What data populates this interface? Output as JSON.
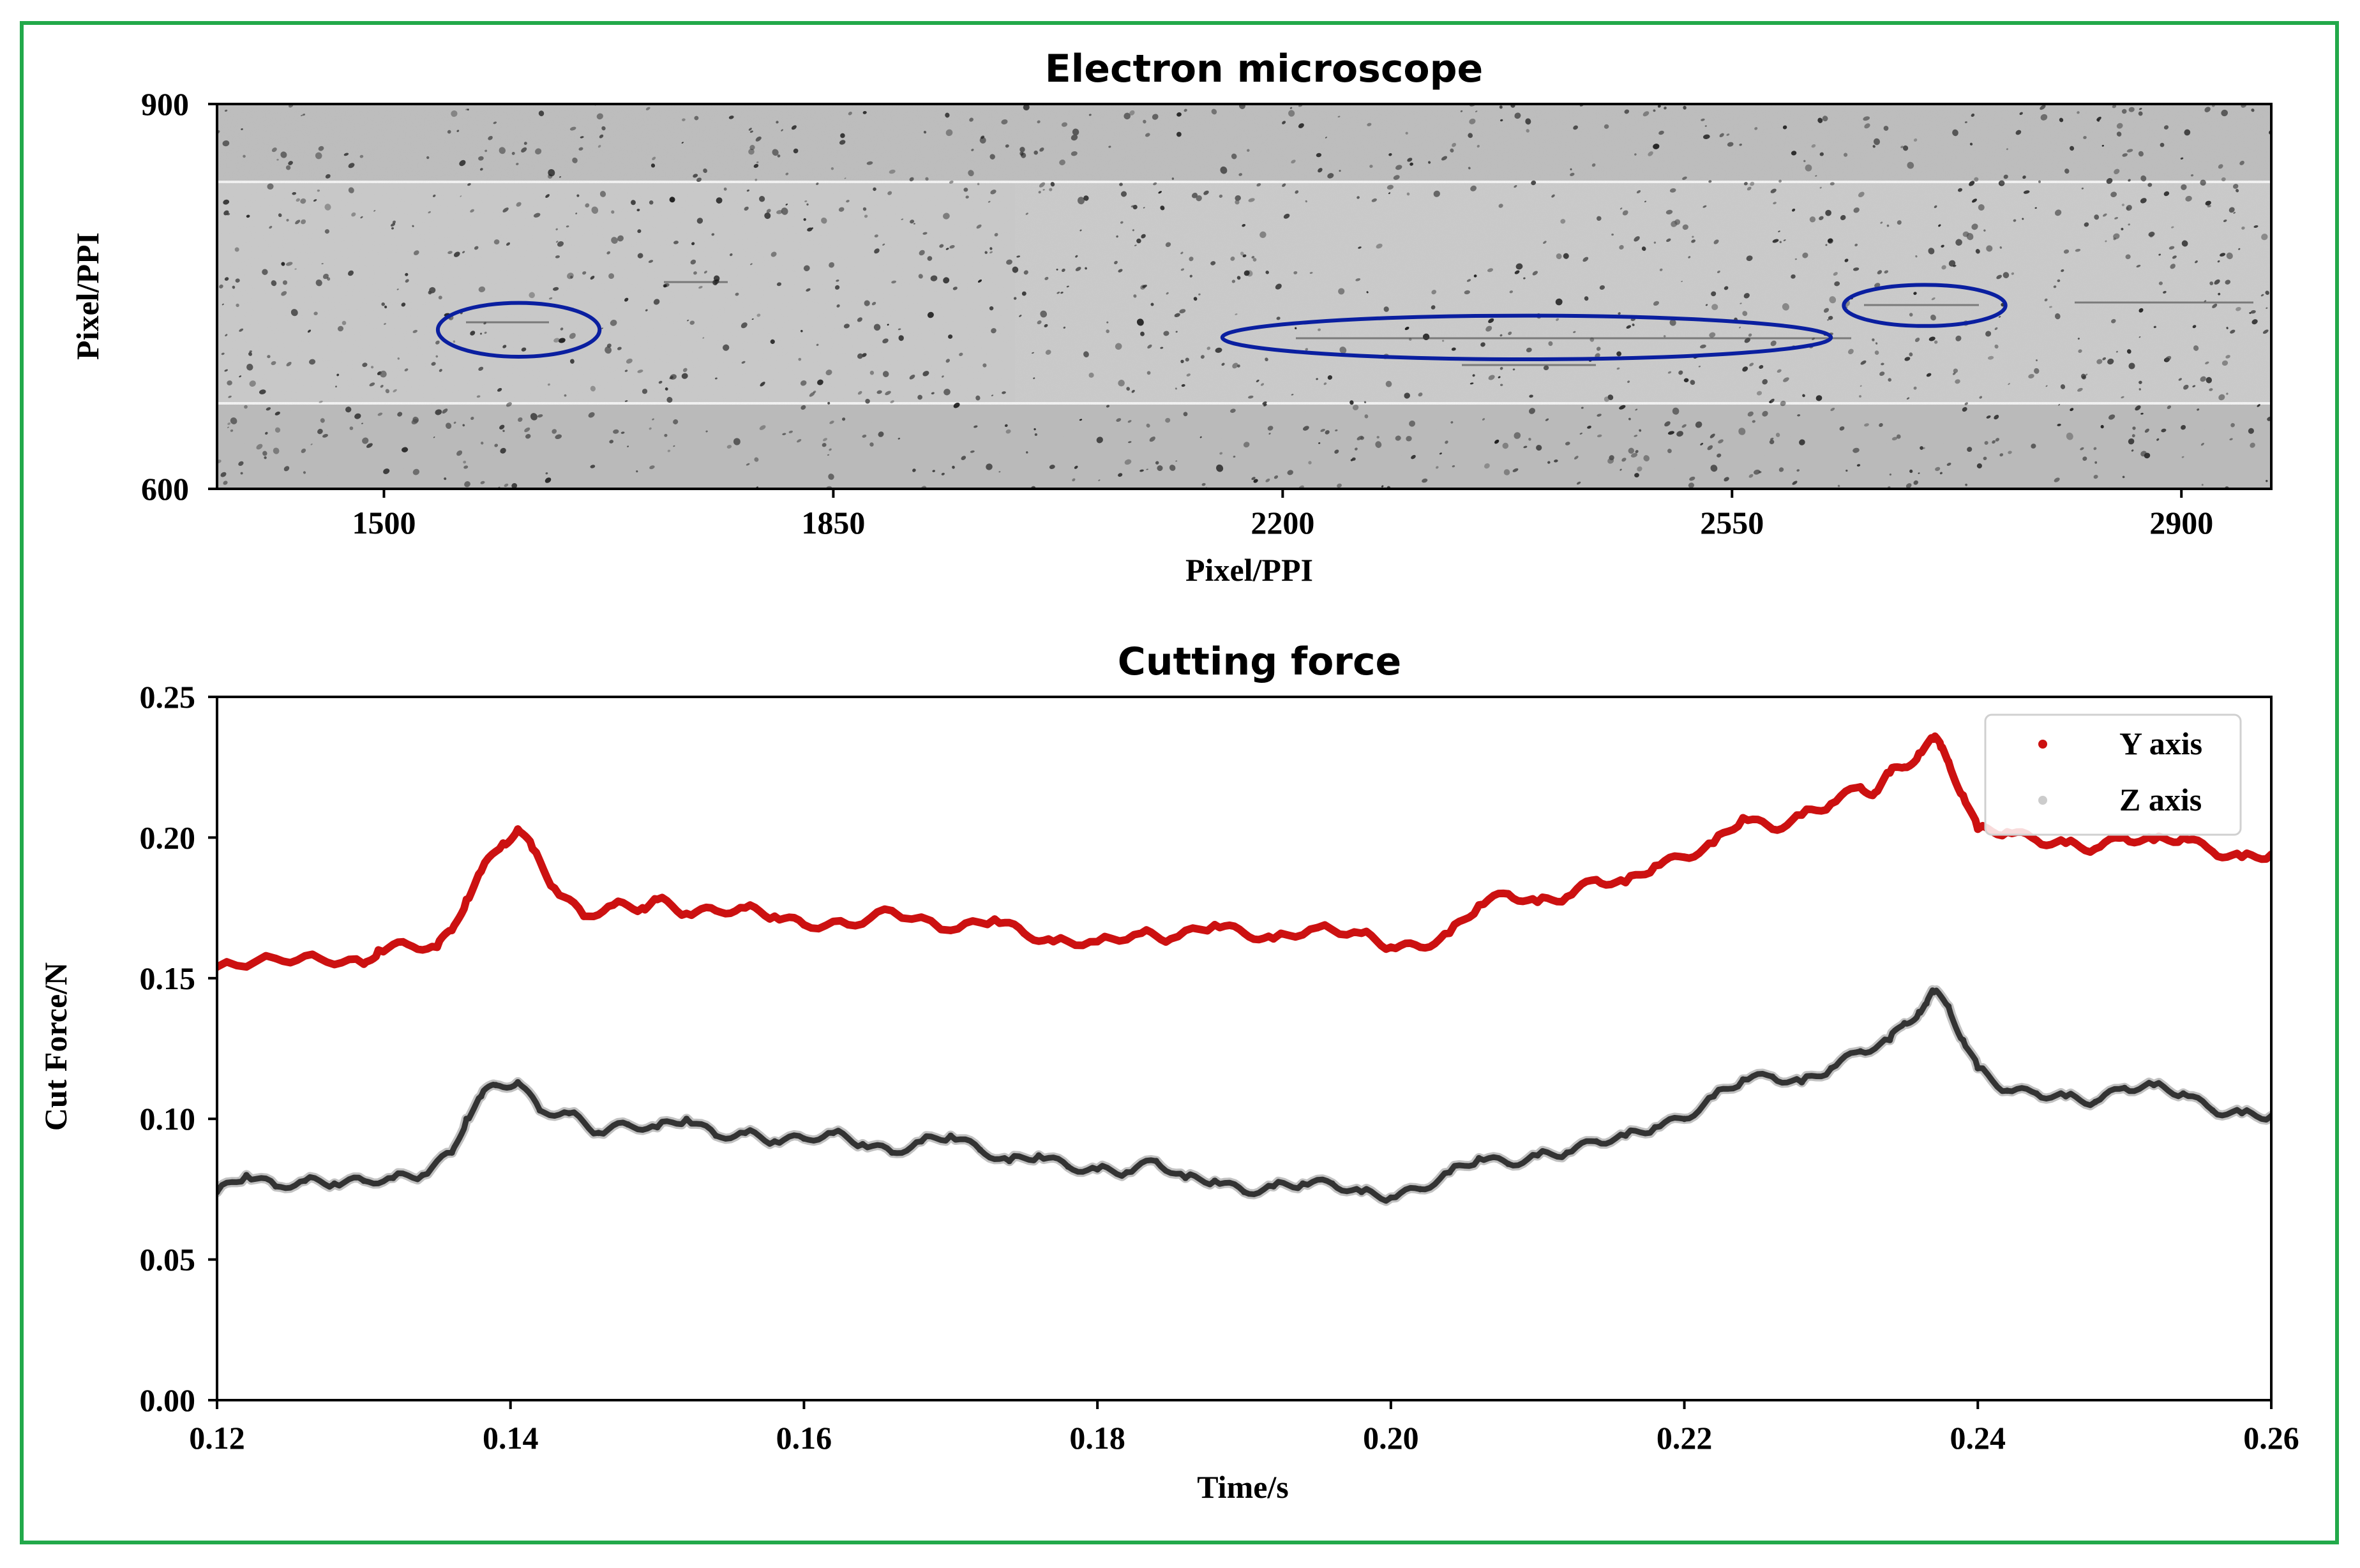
{
  "colors": {
    "frame": "#22a94a",
    "y_axis_series": "#cc1111",
    "z_axis_series": "#333333",
    "ellipse": "#0a1fa0",
    "micro_bg": "#c8c8c8"
  },
  "chart_data": [
    {
      "type": "image",
      "title": "Electron microscope",
      "xlabel": "Pixel/PPI",
      "ylabel": "Pixel/PPI",
      "xlim": [
        1370,
        2970
      ],
      "ylim": [
        600,
        900
      ],
      "xticks": [
        1500,
        1850,
        2200,
        2550,
        2900
      ],
      "yticks": [
        600,
        900
      ],
      "annotations": [
        {
          "shape": "ellipse",
          "cx": 1605,
          "cy": 724,
          "rx": 63,
          "ry": 21
        },
        {
          "shape": "ellipse",
          "cx": 2390,
          "cy": 718,
          "rx": 237,
          "ry": 17
        },
        {
          "shape": "ellipse",
          "cx": 2700,
          "cy": 743,
          "rx": 63,
          "ry": 16
        }
      ]
    },
    {
      "type": "line",
      "title": "Cutting force",
      "xlabel": "Time/s",
      "ylabel": "Cut Force/N",
      "xlim": [
        0.12,
        0.26
      ],
      "ylim": [
        0.0,
        0.25
      ],
      "xticks": [
        0.12,
        0.14,
        0.16,
        0.18,
        0.2,
        0.22,
        0.24,
        0.26
      ],
      "xtick_labels": [
        "0.12",
        "0.14",
        "0.16",
        "0.18",
        "0.20",
        "0.22",
        "0.24",
        "0.26"
      ],
      "yticks": [
        0.0,
        0.05,
        0.1,
        0.15,
        0.2,
        0.25
      ],
      "ytick_labels": [
        "0.00",
        "0.05",
        "0.10",
        "0.15",
        "0.20",
        "0.25"
      ],
      "legend_position": "top-right",
      "series": [
        {
          "name": "Y axis",
          "x": [
            0.12,
            0.124,
            0.127,
            0.13,
            0.131,
            0.133,
            0.135,
            0.136,
            0.137,
            0.138,
            0.1395,
            0.1405,
            0.1415,
            0.143,
            0.145,
            0.147,
            0.149,
            0.15,
            0.152,
            0.154,
            0.156,
            0.158,
            0.16,
            0.163,
            0.166,
            0.17,
            0.173,
            0.175,
            0.177,
            0.18,
            0.183,
            0.185,
            0.188,
            0.19,
            0.192,
            0.195,
            0.198,
            0.2,
            0.202,
            0.204,
            0.206,
            0.208,
            0.21,
            0.212,
            0.214,
            0.216,
            0.218,
            0.22,
            0.222,
            0.224,
            0.226,
            0.228,
            0.23,
            0.232,
            0.233,
            0.234,
            0.235,
            0.236,
            0.237,
            0.2375,
            0.238,
            0.239,
            0.24,
            0.242,
            0.244,
            0.246,
            0.248,
            0.25,
            0.252,
            0.254,
            0.256,
            0.258,
            0.26
          ],
          "values": [
            0.154,
            0.157,
            0.157,
            0.155,
            0.16,
            0.162,
            0.161,
            0.167,
            0.178,
            0.188,
            0.198,
            0.203,
            0.196,
            0.182,
            0.172,
            0.176,
            0.175,
            0.178,
            0.173,
            0.174,
            0.175,
            0.172,
            0.169,
            0.169,
            0.174,
            0.167,
            0.171,
            0.166,
            0.163,
            0.163,
            0.166,
            0.164,
            0.169,
            0.166,
            0.164,
            0.168,
            0.166,
            0.161,
            0.161,
            0.166,
            0.176,
            0.18,
            0.177,
            0.179,
            0.185,
            0.184,
            0.19,
            0.193,
            0.198,
            0.207,
            0.203,
            0.208,
            0.212,
            0.218,
            0.216,
            0.223,
            0.225,
            0.23,
            0.235,
            0.232,
            0.227,
            0.215,
            0.203,
            0.202,
            0.199,
            0.198,
            0.196,
            0.2,
            0.199,
            0.2,
            0.195,
            0.193,
            0.194
          ]
        },
        {
          "name": "Z axis",
          "x": [
            0.12,
            0.122,
            0.124,
            0.126,
            0.128,
            0.13,
            0.132,
            0.134,
            0.136,
            0.137,
            0.138,
            0.139,
            0.1405,
            0.142,
            0.144,
            0.146,
            0.148,
            0.15,
            0.152,
            0.154,
            0.156,
            0.158,
            0.16,
            0.162,
            0.164,
            0.166,
            0.168,
            0.17,
            0.172,
            0.174,
            0.176,
            0.178,
            0.18,
            0.182,
            0.184,
            0.186,
            0.188,
            0.19,
            0.192,
            0.194,
            0.196,
            0.198,
            0.2,
            0.202,
            0.204,
            0.206,
            0.208,
            0.21,
            0.212,
            0.214,
            0.216,
            0.218,
            0.22,
            0.222,
            0.224,
            0.226,
            0.228,
            0.23,
            0.232,
            0.234,
            0.235,
            0.236,
            0.2365,
            0.237,
            0.238,
            0.239,
            0.24,
            0.242,
            0.244,
            0.246,
            0.248,
            0.25,
            0.252,
            0.254,
            0.256,
            0.258,
            0.26
          ],
          "values": [
            0.074,
            0.08,
            0.076,
            0.078,
            0.077,
            0.078,
            0.079,
            0.08,
            0.088,
            0.1,
            0.108,
            0.112,
            0.113,
            0.103,
            0.102,
            0.095,
            0.098,
            0.097,
            0.1,
            0.094,
            0.095,
            0.092,
            0.093,
            0.095,
            0.091,
            0.088,
            0.092,
            0.094,
            0.089,
            0.085,
            0.087,
            0.083,
            0.082,
            0.081,
            0.085,
            0.079,
            0.078,
            0.074,
            0.076,
            0.077,
            0.077,
            0.074,
            0.072,
            0.075,
            0.081,
            0.086,
            0.084,
            0.087,
            0.088,
            0.092,
            0.094,
            0.097,
            0.1,
            0.108,
            0.114,
            0.115,
            0.113,
            0.118,
            0.124,
            0.128,
            0.134,
            0.138,
            0.141,
            0.145,
            0.14,
            0.128,
            0.118,
            0.11,
            0.109,
            0.108,
            0.106,
            0.111,
            0.112,
            0.109,
            0.103,
            0.102,
            0.101
          ]
        }
      ]
    }
  ]
}
